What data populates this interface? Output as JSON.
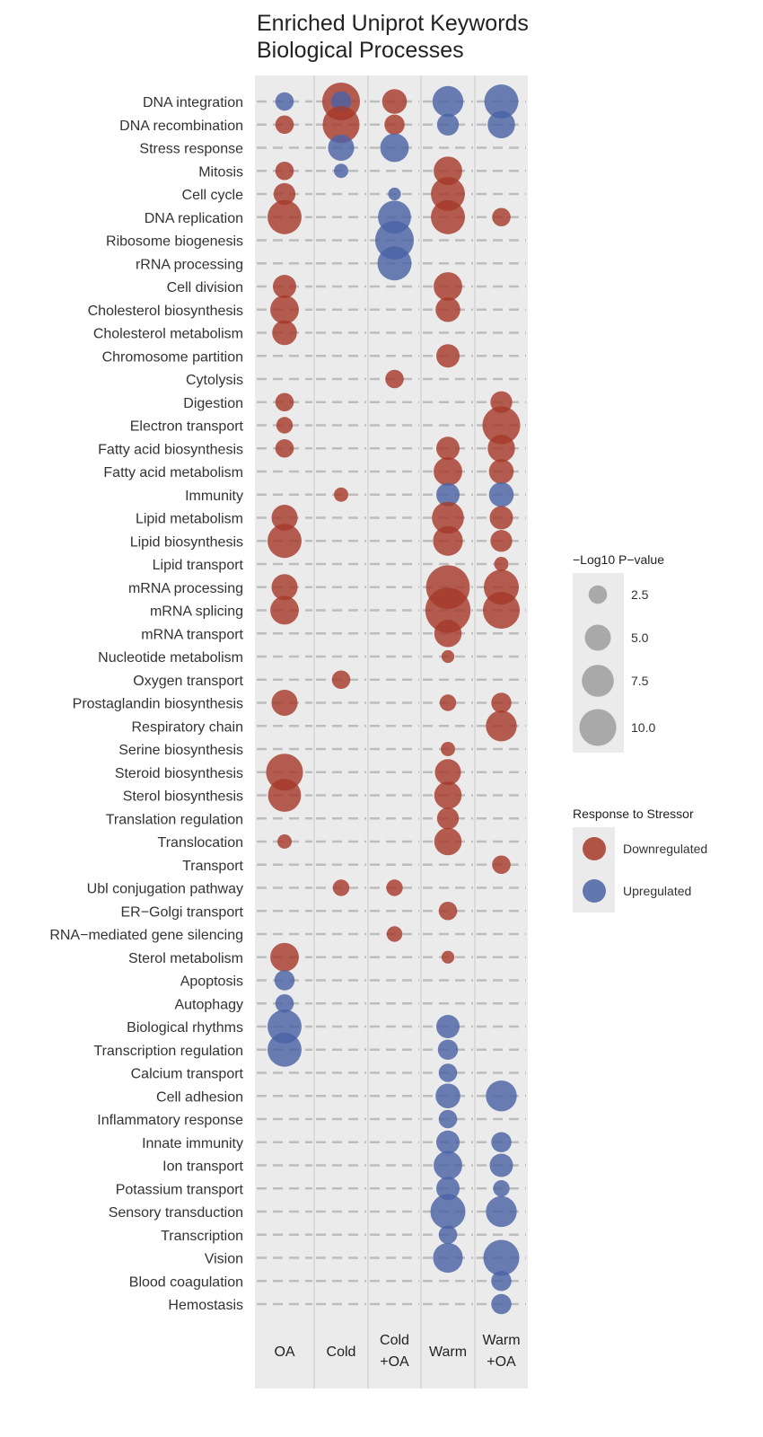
{
  "chart_data": {
    "type": "scatter",
    "subtype": "bubble",
    "title_lines": [
      "Enriched Uniprot Keywords",
      "Biological Processes"
    ],
    "x_categories": [
      [
        "OA"
      ],
      [
        "Cold"
      ],
      [
        "Cold",
        "+OA"
      ],
      [
        "Warm"
      ],
      [
        "Warm",
        "+OA"
      ]
    ],
    "y_categories": [
      "DNA integration",
      "DNA recombination",
      "Stress response",
      "Mitosis",
      "Cell cycle",
      "DNA replication",
      "Ribosome biogenesis",
      "rRNA processing",
      "Cell division",
      "Cholesterol biosynthesis",
      "Cholesterol metabolism",
      "Chromosome partition",
      "Cytolysis",
      "Digestion",
      "Electron transport",
      "Fatty acid biosynthesis",
      "Fatty acid metabolism",
      "Immunity",
      "Lipid metabolism",
      "Lipid biosynthesis",
      "Lipid transport",
      "mRNA processing",
      "mRNA splicing",
      "mRNA transport",
      "Nucleotide metabolism",
      "Oxygen transport",
      "Prostaglandin biosynthesis",
      "Respiratory chain",
      "Serine biosynthesis",
      "Steroid biosynthesis",
      "Sterol biosynthesis",
      "Translation regulation",
      "Translocation",
      "Transport",
      "Ubl conjugation pathway",
      "ER−Golgi transport",
      "RNA−mediated gene silencing",
      "Sterol metabolism",
      "Apoptosis",
      "Autophagy",
      "Biological rhythms",
      "Transcription regulation",
      "Calcium transport",
      "Cell adhesion",
      "Inflammatory response",
      "Innate immunity",
      "Ion transport",
      "Potassium transport",
      "Sensory transduction",
      "Transcription",
      "Vision",
      "Blood coagulation",
      "Hemostasis"
    ],
    "size_legend": {
      "title": "−Log10 P−value",
      "values": [
        2.5,
        5.0,
        7.5,
        10.0
      ],
      "labels": [
        "2.5",
        "5.0",
        "7.5",
        "10.0"
      ]
    },
    "color_legend": {
      "title": "Response to Stressor",
      "entries": [
        {
          "key": "down",
          "label": "Downregulated",
          "color": "#A63A2B"
        },
        {
          "key": "up",
          "label": "Upregulated",
          "color": "#4A63A5"
        }
      ]
    },
    "points": [
      {
        "x": "OA",
        "y": "DNA integration",
        "size": 2.5,
        "dir": "up"
      },
      {
        "x": "Cold",
        "y": "DNA integration",
        "size": 10.5,
        "dir": "down"
      },
      {
        "x": "Cold",
        "y": "DNA integration",
        "size": 3.0,
        "dir": "up"
      },
      {
        "x": "Cold+OA",
        "y": "DNA integration",
        "size": 4.5,
        "dir": "down"
      },
      {
        "x": "Warm",
        "y": "DNA integration",
        "size": 7.0,
        "dir": "up"
      },
      {
        "x": "Warm+OA",
        "y": "DNA integration",
        "size": 8.5,
        "dir": "up"
      },
      {
        "x": "OA",
        "y": "DNA recombination",
        "size": 2.5,
        "dir": "down"
      },
      {
        "x": "Cold",
        "y": "DNA recombination",
        "size": 10.0,
        "dir": "down"
      },
      {
        "x": "Cold+OA",
        "y": "DNA recombination",
        "size": 3.0,
        "dir": "down"
      },
      {
        "x": "Warm",
        "y": "DNA recombination",
        "size": 3.5,
        "dir": "up"
      },
      {
        "x": "Warm+OA",
        "y": "DNA recombination",
        "size": 5.5,
        "dir": "up"
      },
      {
        "x": "Cold",
        "y": "Stress response",
        "size": 5.0,
        "dir": "up"
      },
      {
        "x": "Cold+OA",
        "y": "Stress response",
        "size": 6.0,
        "dir": "up"
      },
      {
        "x": "OA",
        "y": "Mitosis",
        "size": 2.5,
        "dir": "down"
      },
      {
        "x": "Cold",
        "y": "Mitosis",
        "size": 1.5,
        "dir": "up"
      },
      {
        "x": "Warm",
        "y": "Mitosis",
        "size": 6.0,
        "dir": "down"
      },
      {
        "x": "OA",
        "y": "Cell cycle",
        "size": 3.5,
        "dir": "down"
      },
      {
        "x": "Cold+OA",
        "y": "Cell cycle",
        "size": 1.2,
        "dir": "up"
      },
      {
        "x": "Warm",
        "y": "Cell cycle",
        "size": 8.5,
        "dir": "down"
      },
      {
        "x": "OA",
        "y": "DNA replication",
        "size": 8.5,
        "dir": "down"
      },
      {
        "x": "Cold+OA",
        "y": "DNA replication",
        "size": 8.0,
        "dir": "up"
      },
      {
        "x": "Warm",
        "y": "DNA replication",
        "size": 8.5,
        "dir": "down"
      },
      {
        "x": "Warm+OA",
        "y": "DNA replication",
        "size": 2.5,
        "dir": "down"
      },
      {
        "x": "Cold+OA",
        "y": "Ribosome biogenesis",
        "size": 11.0,
        "dir": "up"
      },
      {
        "x": "Cold+OA",
        "y": "rRNA processing",
        "size": 8.5,
        "dir": "up"
      },
      {
        "x": "OA",
        "y": "Cell division",
        "size": 4.0,
        "dir": "down"
      },
      {
        "x": "Warm",
        "y": "Cell division",
        "size": 6.0,
        "dir": "down"
      },
      {
        "x": "OA",
        "y": "Cholesterol biosynthesis",
        "size": 6.0,
        "dir": "down"
      },
      {
        "x": "Warm",
        "y": "Cholesterol biosynthesis",
        "size": 4.5,
        "dir": "down"
      },
      {
        "x": "OA",
        "y": "Cholesterol metabolism",
        "size": 4.5,
        "dir": "down"
      },
      {
        "x": "Warm",
        "y": "Chromosome partition",
        "size": 4.0,
        "dir": "down"
      },
      {
        "x": "Cold+OA",
        "y": "Cytolysis",
        "size": 2.5,
        "dir": "down"
      },
      {
        "x": "OA",
        "y": "Digestion",
        "size": 2.5,
        "dir": "down"
      },
      {
        "x": "Warm+OA",
        "y": "Digestion",
        "size": 3.5,
        "dir": "down"
      },
      {
        "x": "OA",
        "y": "Electron transport",
        "size": 2.0,
        "dir": "down"
      },
      {
        "x": "Warm+OA",
        "y": "Electron transport",
        "size": 10.5,
        "dir": "down"
      },
      {
        "x": "OA",
        "y": "Fatty acid biosynthesis",
        "size": 2.5,
        "dir": "down"
      },
      {
        "x": "Warm",
        "y": "Fatty acid biosynthesis",
        "size": 4.0,
        "dir": "down"
      },
      {
        "x": "Warm+OA",
        "y": "Fatty acid biosynthesis",
        "size": 5.5,
        "dir": "down"
      },
      {
        "x": "Warm",
        "y": "Fatty acid metabolism",
        "size": 6.0,
        "dir": "down"
      },
      {
        "x": "Warm+OA",
        "y": "Fatty acid metabolism",
        "size": 4.5,
        "dir": "down"
      },
      {
        "x": "Cold",
        "y": "Immunity",
        "size": 1.5,
        "dir": "down"
      },
      {
        "x": "Warm",
        "y": "Immunity",
        "size": 4.0,
        "dir": "up"
      },
      {
        "x": "Warm+OA",
        "y": "Immunity",
        "size": 4.5,
        "dir": "up"
      },
      {
        "x": "OA",
        "y": "Lipid metabolism",
        "size": 5.0,
        "dir": "down"
      },
      {
        "x": "Warm",
        "y": "Lipid metabolism",
        "size": 7.5,
        "dir": "down"
      },
      {
        "x": "Warm+OA",
        "y": "Lipid metabolism",
        "size": 4.0,
        "dir": "down"
      },
      {
        "x": "OA",
        "y": "Lipid biosynthesis",
        "size": 8.5,
        "dir": "down"
      },
      {
        "x": "Warm",
        "y": "Lipid biosynthesis",
        "size": 6.5,
        "dir": "down"
      },
      {
        "x": "Warm+OA",
        "y": "Lipid biosynthesis",
        "size": 3.5,
        "dir": "down"
      },
      {
        "x": "Warm+OA",
        "y": "Lipid transport",
        "size": 1.5,
        "dir": "down"
      },
      {
        "x": "OA",
        "y": "mRNA processing",
        "size": 5.0,
        "dir": "down"
      },
      {
        "x": "Warm",
        "y": "mRNA processing",
        "size": 14.0,
        "dir": "down"
      },
      {
        "x": "Warm+OA",
        "y": "mRNA processing",
        "size": 9.0,
        "dir": "down"
      },
      {
        "x": "OA",
        "y": "mRNA splicing",
        "size": 6.0,
        "dir": "down"
      },
      {
        "x": "Warm",
        "y": "mRNA splicing",
        "size": 15.0,
        "dir": "down"
      },
      {
        "x": "Warm+OA",
        "y": "mRNA splicing",
        "size": 10.0,
        "dir": "down"
      },
      {
        "x": "Warm",
        "y": "mRNA transport",
        "size": 5.5,
        "dir": "down"
      },
      {
        "x": "Warm",
        "y": "Nucleotide metabolism",
        "size": 1.2,
        "dir": "down"
      },
      {
        "x": "Cold",
        "y": "Oxygen transport",
        "size": 2.5,
        "dir": "down"
      },
      {
        "x": "OA",
        "y": "Prostaglandin biosynthesis",
        "size": 5.0,
        "dir": "down"
      },
      {
        "x": "Warm",
        "y": "Prostaglandin biosynthesis",
        "size": 2.0,
        "dir": "down"
      },
      {
        "x": "Warm+OA",
        "y": "Prostaglandin biosynthesis",
        "size": 3.0,
        "dir": "down"
      },
      {
        "x": "Warm+OA",
        "y": "Respiratory chain",
        "size": 7.0,
        "dir": "down"
      },
      {
        "x": "Warm",
        "y": "Serine biosynthesis",
        "size": 1.5,
        "dir": "down"
      },
      {
        "x": "OA",
        "y": "Steroid biosynthesis",
        "size": 10.0,
        "dir": "down"
      },
      {
        "x": "Warm",
        "y": "Steroid biosynthesis",
        "size": 5.0,
        "dir": "down"
      },
      {
        "x": "OA",
        "y": "Sterol biosynthesis",
        "size": 8.0,
        "dir": "down"
      },
      {
        "x": "Warm",
        "y": "Sterol biosynthesis",
        "size": 5.5,
        "dir": "down"
      },
      {
        "x": "Warm",
        "y": "Translation regulation",
        "size": 3.5,
        "dir": "down"
      },
      {
        "x": "OA",
        "y": "Translocation",
        "size": 1.5,
        "dir": "down"
      },
      {
        "x": "Warm",
        "y": "Translocation",
        "size": 5.5,
        "dir": "down"
      },
      {
        "x": "Warm+OA",
        "y": "Transport",
        "size": 2.5,
        "dir": "down"
      },
      {
        "x": "Cold",
        "y": "Ubl conjugation pathway",
        "size": 2.0,
        "dir": "down"
      },
      {
        "x": "Cold+OA",
        "y": "Ubl conjugation pathway",
        "size": 2.0,
        "dir": "down"
      },
      {
        "x": "Warm",
        "y": "ER−Golgi transport",
        "size": 2.5,
        "dir": "down"
      },
      {
        "x": "Cold+OA",
        "y": "RNA−mediated gene silencing",
        "size": 1.8,
        "dir": "down"
      },
      {
        "x": "OA",
        "y": "Sterol metabolism",
        "size": 6.0,
        "dir": "down"
      },
      {
        "x": "Warm",
        "y": "Sterol metabolism",
        "size": 1.2,
        "dir": "down"
      },
      {
        "x": "OA",
        "y": "Apoptosis",
        "size": 3.0,
        "dir": "up"
      },
      {
        "x": "OA",
        "y": "Autophagy",
        "size": 2.5,
        "dir": "up"
      },
      {
        "x": "OA",
        "y": "Biological rhythms",
        "size": 8.5,
        "dir": "up"
      },
      {
        "x": "Warm",
        "y": "Biological rhythms",
        "size": 4.0,
        "dir": "up"
      },
      {
        "x": "OA",
        "y": "Transcription regulation",
        "size": 8.5,
        "dir": "up"
      },
      {
        "x": "Warm",
        "y": "Transcription regulation",
        "size": 3.0,
        "dir": "up"
      },
      {
        "x": "Warm",
        "y": "Calcium transport",
        "size": 2.5,
        "dir": "up"
      },
      {
        "x": "Warm",
        "y": "Cell adhesion",
        "size": 4.5,
        "dir": "up"
      },
      {
        "x": "Warm+OA",
        "y": "Cell adhesion",
        "size": 7.0,
        "dir": "up"
      },
      {
        "x": "Warm",
        "y": "Inflammatory response",
        "size": 2.5,
        "dir": "up"
      },
      {
        "x": "Warm",
        "y": "Innate immunity",
        "size": 4.0,
        "dir": "up"
      },
      {
        "x": "Warm+OA",
        "y": "Innate immunity",
        "size": 3.0,
        "dir": "up"
      },
      {
        "x": "Warm",
        "y": "Ion transport",
        "size": 6.0,
        "dir": "up"
      },
      {
        "x": "Warm+OA",
        "y": "Ion transport",
        "size": 4.0,
        "dir": "up"
      },
      {
        "x": "Warm",
        "y": "Potassium transport",
        "size": 4.0,
        "dir": "up"
      },
      {
        "x": "Warm+OA",
        "y": "Potassium transport",
        "size": 2.0,
        "dir": "up"
      },
      {
        "x": "Warm",
        "y": "Sensory transduction",
        "size": 9.0,
        "dir": "up"
      },
      {
        "x": "Warm+OA",
        "y": "Sensory transduction",
        "size": 7.0,
        "dir": "up"
      },
      {
        "x": "Warm",
        "y": "Transcription",
        "size": 2.5,
        "dir": "up"
      },
      {
        "x": "Warm",
        "y": "Vision",
        "size": 6.5,
        "dir": "up"
      },
      {
        "x": "Warm+OA",
        "y": "Vision",
        "size": 9.5,
        "dir": "up"
      },
      {
        "x": "Warm+OA",
        "y": "Blood coagulation",
        "size": 3.0,
        "dir": "up"
      },
      {
        "x": "Warm+OA",
        "y": "Hemostasis",
        "size": 3.0,
        "dir": "up"
      }
    ]
  }
}
